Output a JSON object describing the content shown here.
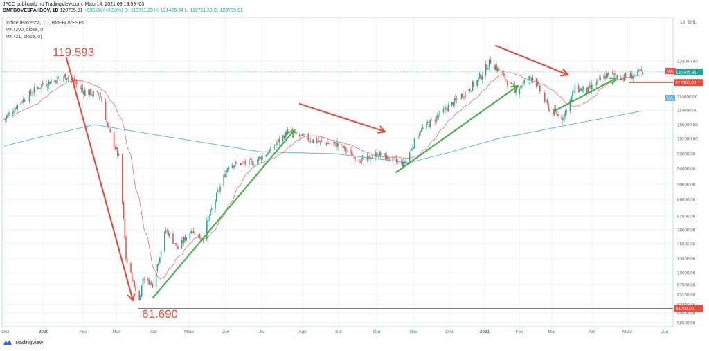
{
  "header": {
    "publisher": "JFCC publicado no TradingView.com, Maio 14, 2021 09:13:59 -03",
    "symbol": "BMFBOVESPA:IBOV, 1D",
    "last": "120705.91",
    "change": "+995.88 (+0.83%)",
    "o": "O: 119711.29",
    "h": "H: 121426.34",
    "l": "L: 119711.29",
    "c": "C: 120705.91"
  },
  "legend": {
    "title": "Índice IBovespa, 1D, BMFBOVESPA",
    "ma200": "MA (200, close, 0)",
    "ma21": "MA (21, close, 0)"
  },
  "footer": {
    "brand": "TradingView"
  },
  "colors": {
    "up": "#26a69a",
    "down": "#ef5350",
    "ma200": "#64b5f6",
    "ma21": "#ef5350",
    "annot_red": "#e84c3d",
    "annot_green": "#4caf50",
    "grid": "#eef0f3",
    "dotted": "#26a69a"
  },
  "chart_data": {
    "type": "candlestick",
    "currency": "BRL",
    "yticks": [
      58500,
      60500,
      62700,
      65100,
      67500,
      70000,
      73000,
      76000,
      79000,
      82000,
      86000,
      90000,
      94000,
      98000,
      102000,
      106000,
      110000,
      114000,
      118000,
      124000
    ],
    "x_labels": [
      "Dez",
      "2020",
      "Fev",
      "Mar",
      "Abr",
      "Maio",
      "Jun",
      "Jul",
      "Ago",
      "Set",
      "Out",
      "Nov",
      "Dez",
      "2021",
      "Fev",
      "Mar",
      "Abr",
      "Maio",
      "Jun"
    ],
    "labels": {
      "last": "120705.91",
      "ma21": "MA",
      "level_117": "117600.00",
      "ma200": "MA",
      "level_61": "61700.00",
      "ylabel": "BRL"
    },
    "annotations": {
      "high": "119.593",
      "low": "61.690"
    },
    "horizontal_levels": [
      117600,
      61700
    ],
    "last_close": 120705.91,
    "price_path": [
      [
        "2019-12-02",
        107500
      ],
      [
        "2019-12-16",
        112500
      ],
      [
        "2020-01-02",
        117000
      ],
      [
        "2020-01-23",
        119593
      ],
      [
        "2020-02-05",
        115500
      ],
      [
        "2020-02-20",
        114000
      ],
      [
        "2020-02-26",
        105000
      ],
      [
        "2020-03-06",
        97000
      ],
      [
        "2020-03-12",
        73000
      ],
      [
        "2020-03-23",
        63600
      ],
      [
        "2020-03-26",
        69000
      ],
      [
        "2020-04-03",
        67500
      ],
      [
        "2020-04-14",
        79000
      ],
      [
        "2020-04-24",
        75000
      ],
      [
        "2020-05-05",
        79000
      ],
      [
        "2020-05-14",
        77000
      ],
      [
        "2020-06-05",
        95000
      ],
      [
        "2020-06-25",
        95500
      ],
      [
        "2020-07-10",
        99000
      ],
      [
        "2020-07-24",
        104000
      ],
      [
        "2020-08-04",
        102500
      ],
      [
        "2020-08-20",
        101000
      ],
      [
        "2020-09-03",
        100500
      ],
      [
        "2020-09-24",
        96000
      ],
      [
        "2020-10-07",
        98000
      ],
      [
        "2020-10-28",
        95000
      ],
      [
        "2020-11-10",
        104000
      ],
      [
        "2020-12-01",
        110000
      ],
      [
        "2020-12-28",
        118000
      ],
      [
        "2021-01-08",
        124000
      ],
      [
        "2021-01-28",
        115500
      ],
      [
        "2021-02-12",
        119500
      ],
      [
        "2021-02-26",
        110000
      ],
      [
        "2021-03-09",
        108000
      ],
      [
        "2021-03-19",
        116000
      ],
      [
        "2021-03-30",
        115500
      ],
      [
        "2021-04-15",
        120000
      ],
      [
        "2021-04-30",
        119000
      ],
      [
        "2021-05-14",
        120705.91
      ]
    ],
    "ma200_path": [
      [
        "2019-12-02",
        100000
      ],
      [
        "2020-02-15",
        106000
      ],
      [
        "2020-04-15",
        102500
      ],
      [
        "2020-07-01",
        98500
      ],
      [
        "2020-09-01",
        98000
      ],
      [
        "2020-11-01",
        95500
      ],
      [
        "2020-12-01",
        98000
      ],
      [
        "2021-01-15",
        102000
      ],
      [
        "2021-03-15",
        106000
      ],
      [
        "2021-05-14",
        109800
      ]
    ]
  }
}
